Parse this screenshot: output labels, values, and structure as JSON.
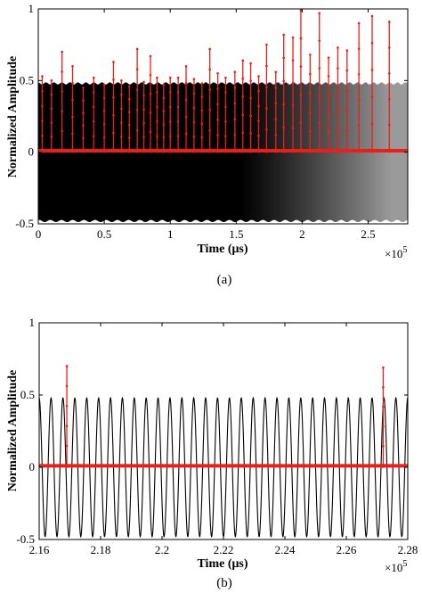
{
  "chart_data": [
    {
      "type": "line",
      "caption": "(a)",
      "xlabel": "Time (μs)",
      "ylabel": "Normalized Amplitude",
      "x_multiplier": "×10",
      "x_multiplier_exp": "5",
      "xlim": [
        0,
        2.8
      ],
      "ylim": [
        -0.5,
        1
      ],
      "xticks": [
        0,
        0.5,
        1,
        1.5,
        2,
        2.5
      ],
      "xtick_labels": [
        "0",
        "0.5",
        "1",
        "1.5",
        "2",
        "2.5"
      ],
      "yticks": [
        -0.5,
        0,
        0.5,
        1
      ],
      "ytick_labels": [
        "-0.5",
        "0",
        "0.5",
        "1"
      ],
      "grid": false,
      "series": [
        {
          "color": "#000000",
          "style": "dense oscillation",
          "amplitude": 0.48,
          "offset": 0
        },
        {
          "color": "#e8201a",
          "style": "pulse train",
          "baseline": 0.01,
          "pulses": [
            {
              "x": 0.03,
              "y": 0.53
            },
            {
              "x": 0.1,
              "y": 0.5
            },
            {
              "x": 0.18,
              "y": 0.7
            },
            {
              "x": 0.26,
              "y": 0.6
            },
            {
              "x": 0.34,
              "y": 0.45
            },
            {
              "x": 0.42,
              "y": 0.52
            },
            {
              "x": 0.5,
              "y": 0.47
            },
            {
              "x": 0.57,
              "y": 0.63
            },
            {
              "x": 0.63,
              "y": 0.5
            },
            {
              "x": 0.69,
              "y": 0.46
            },
            {
              "x": 0.75,
              "y": 0.72
            },
            {
              "x": 0.8,
              "y": 0.49
            },
            {
              "x": 0.85,
              "y": 0.67
            },
            {
              "x": 0.9,
              "y": 0.52
            },
            {
              "x": 0.95,
              "y": 0.47
            },
            {
              "x": 1.0,
              "y": 0.52
            },
            {
              "x": 1.06,
              "y": 0.52
            },
            {
              "x": 1.12,
              "y": 0.6
            },
            {
              "x": 1.18,
              "y": 0.51
            },
            {
              "x": 1.24,
              "y": 0.48
            },
            {
              "x": 1.3,
              "y": 0.72
            },
            {
              "x": 1.36,
              "y": 0.55
            },
            {
              "x": 1.42,
              "y": 0.52
            },
            {
              "x": 1.49,
              "y": 0.56
            },
            {
              "x": 1.55,
              "y": 0.64
            },
            {
              "x": 1.61,
              "y": 0.62
            },
            {
              "x": 1.67,
              "y": 0.53
            },
            {
              "x": 1.73,
              "y": 0.75
            },
            {
              "x": 1.8,
              "y": 0.56
            },
            {
              "x": 1.86,
              "y": 0.82
            },
            {
              "x": 1.93,
              "y": 0.8
            },
            {
              "x": 1.99,
              "y": 0.99
            },
            {
              "x": 2.06,
              "y": 0.68
            },
            {
              "x": 2.13,
              "y": 0.97
            },
            {
              "x": 2.2,
              "y": 0.66
            },
            {
              "x": 2.27,
              "y": 0.73
            },
            {
              "x": 2.34,
              "y": 0.71
            },
            {
              "x": 2.43,
              "y": 0.9
            },
            {
              "x": 2.53,
              "y": 0.95
            },
            {
              "x": 2.66,
              "y": 0.91
            }
          ]
        }
      ]
    },
    {
      "type": "line",
      "caption": "(b)",
      "xlabel": "Time (μs)",
      "ylabel": "Normalized Amplitude",
      "x_multiplier": "×10",
      "x_multiplier_exp": "5",
      "xlim": [
        2.16,
        2.28
      ],
      "ylim": [
        -0.5,
        1
      ],
      "xticks": [
        2.16,
        2.18,
        2.2,
        2.22,
        2.24,
        2.26,
        2.28
      ],
      "xtick_labels": [
        "2.16",
        "2.18",
        "2.2",
        "2.22",
        "2.24",
        "2.26",
        "2.28"
      ],
      "yticks": [
        -0.5,
        0,
        0.5,
        1
      ],
      "ytick_labels": [
        "-0.5",
        "0",
        "0.5",
        "1"
      ],
      "grid": false,
      "series": [
        {
          "color": "#000000",
          "style": "sinusoid",
          "amplitude": 0.48,
          "cycles": 31,
          "offset": 0
        },
        {
          "color": "#e8201a",
          "style": "pulse train",
          "baseline": 0.01,
          "pulses": [
            {
              "x": 2.169,
              "y": 0.7
            },
            {
              "x": 2.272,
              "y": 0.69
            }
          ]
        }
      ]
    }
  ]
}
